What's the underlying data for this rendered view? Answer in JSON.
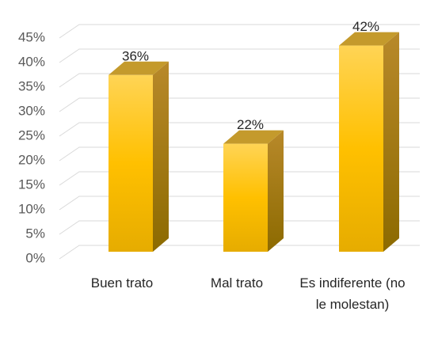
{
  "chart_data": {
    "type": "bar3d",
    "categories": [
      "Buen trato",
      "Mal trato",
      "Es indiferente (no le molestan)"
    ],
    "values": [
      36,
      22,
      42
    ],
    "value_labels": [
      "36%",
      "22%",
      "42%"
    ],
    "color": "#ffc000",
    "ylim": [
      0,
      45
    ],
    "yticks": [
      {
        "value": 0,
        "label": "0%"
      },
      {
        "value": 5,
        "label": "5%"
      },
      {
        "value": 10,
        "label": "10%"
      },
      {
        "value": 15,
        "label": "15%"
      },
      {
        "value": 20,
        "label": "20%"
      },
      {
        "value": 25,
        "label": "25%"
      },
      {
        "value": 30,
        "label": "30%"
      },
      {
        "value": 35,
        "label": "35%"
      },
      {
        "value": 40,
        "label": "40%"
      },
      {
        "value": 45,
        "label": "45%"
      }
    ],
    "grid": true
  }
}
